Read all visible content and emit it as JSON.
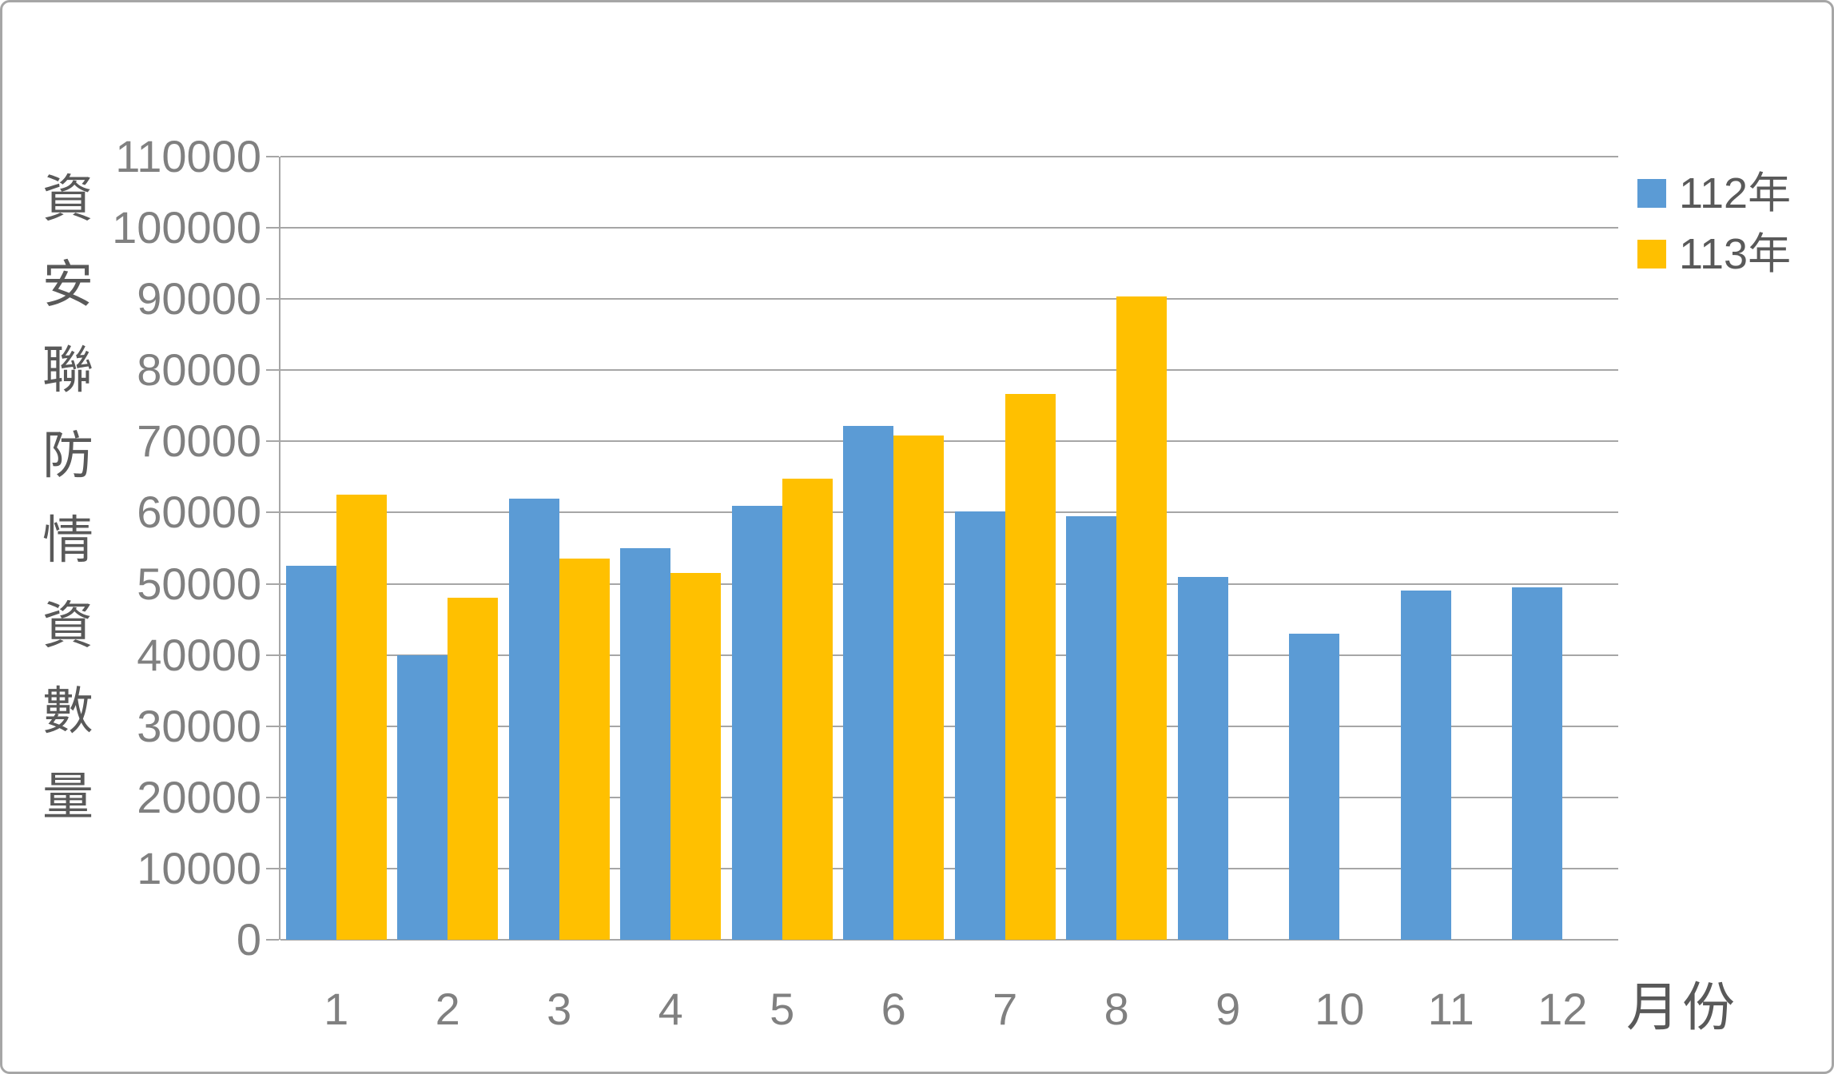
{
  "chart_data": {
    "type": "bar",
    "title": "",
    "xlabel": "月份",
    "ylabel": "資安聯防情資數量",
    "categories": [
      "1",
      "2",
      "3",
      "4",
      "5",
      "6",
      "7",
      "8",
      "9",
      "10",
      "11",
      "12"
    ],
    "series": [
      {
        "name": "112年",
        "color": "#5b9bd5",
        "values": [
          52500,
          40000,
          62000,
          55000,
          61000,
          72200,
          60200,
          59500,
          51000,
          43000,
          49000,
          49500
        ]
      },
      {
        "name": "113年",
        "color": "#ffc000",
        "values": [
          62500,
          48000,
          53500,
          51500,
          64800,
          70800,
          76700,
          90400,
          null,
          null,
          null,
          null
        ]
      }
    ],
    "ylim": [
      0,
      110000
    ],
    "ytick_step": 10000,
    "yticks": [
      0,
      10000,
      20000,
      30000,
      40000,
      50000,
      60000,
      70000,
      80000,
      90000,
      100000,
      110000
    ],
    "grid": true,
    "legend_position": "right-top",
    "gridline_color": "#a6a6a6",
    "tick_label_color": "#808080",
    "axis_title_color": "#595959"
  }
}
